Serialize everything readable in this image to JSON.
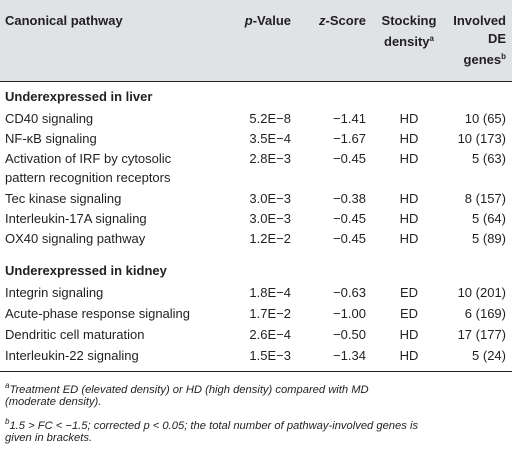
{
  "header": {
    "pathway": "Canonical pathway",
    "pvalue_italic": "p",
    "pvalue_rest": "-Value",
    "zscore_italic": "z",
    "zscore_rest": "-Score",
    "density_line1": "Stocking",
    "density_line2": "density",
    "density_sup": "a",
    "genes_line1": "Involved",
    "genes_line2": "DE",
    "genes_line3": "genes",
    "genes_sup": "b"
  },
  "sections": [
    {
      "title": "Underexpressed in liver",
      "rows": [
        {
          "pathway": "CD40 signaling",
          "p": "5.2E−8",
          "z": "−1.41",
          "density": "HD",
          "genes": "10 (65)"
        },
        {
          "pathway": "NF-κB signaling",
          "p": "3.5E−4",
          "z": "−1.67",
          "density": "HD",
          "genes": "10 (173)"
        },
        {
          "pathway": "Activation of IRF by cytosolic",
          "pathway2": "pattern recognition receptors",
          "p": "2.8E−3",
          "z": "−0.45",
          "density": "HD",
          "genes": "5 (63)"
        },
        {
          "pathway": "Tec kinase signaling",
          "p": "3.0E−3",
          "z": "−0.38",
          "density": "HD",
          "genes": "8 (157)"
        },
        {
          "pathway": "Interleukin-17A signaling",
          "p": "3.0E−3",
          "z": "−0.45",
          "density": "HD",
          "genes": "5 (64)"
        },
        {
          "pathway": "OX40 signaling pathway",
          "p": "1.2E−2",
          "z": "−0.45",
          "density": "HD",
          "genes": "5 (89)"
        }
      ]
    },
    {
      "title": "Underexpressed in kidney",
      "rows": [
        {
          "pathway": "Integrin signaling",
          "p": "1.8E−4",
          "z": "−0.63",
          "density": "ED",
          "genes": "10 (201)"
        },
        {
          "pathway": "Acute-phase response signaling",
          "p": "1.7E−2",
          "z": "−1.00",
          "density": "ED",
          "genes": "6 (169)"
        },
        {
          "pathway": "Dendritic cell maturation",
          "p": "2.6E−4",
          "z": "−0.50",
          "density": "HD",
          "genes": "17 (177)"
        },
        {
          "pathway": "Interleukin-22 signaling",
          "p": "1.5E−3",
          "z": "−1.34",
          "density": "HD",
          "genes": "5 (24)"
        }
      ]
    }
  ],
  "footnotes": {
    "a_mark": "a",
    "a_text1": "Treatment ED (elevated density) or HD (high density) compared with MD",
    "a_text2": "(moderate density).",
    "b_mark": "b",
    "b_text1": "1.5 > FC < −1.5; corrected p < 0.05; the total number of pathway-involved genes is",
    "b_text2": "given in brackets."
  }
}
